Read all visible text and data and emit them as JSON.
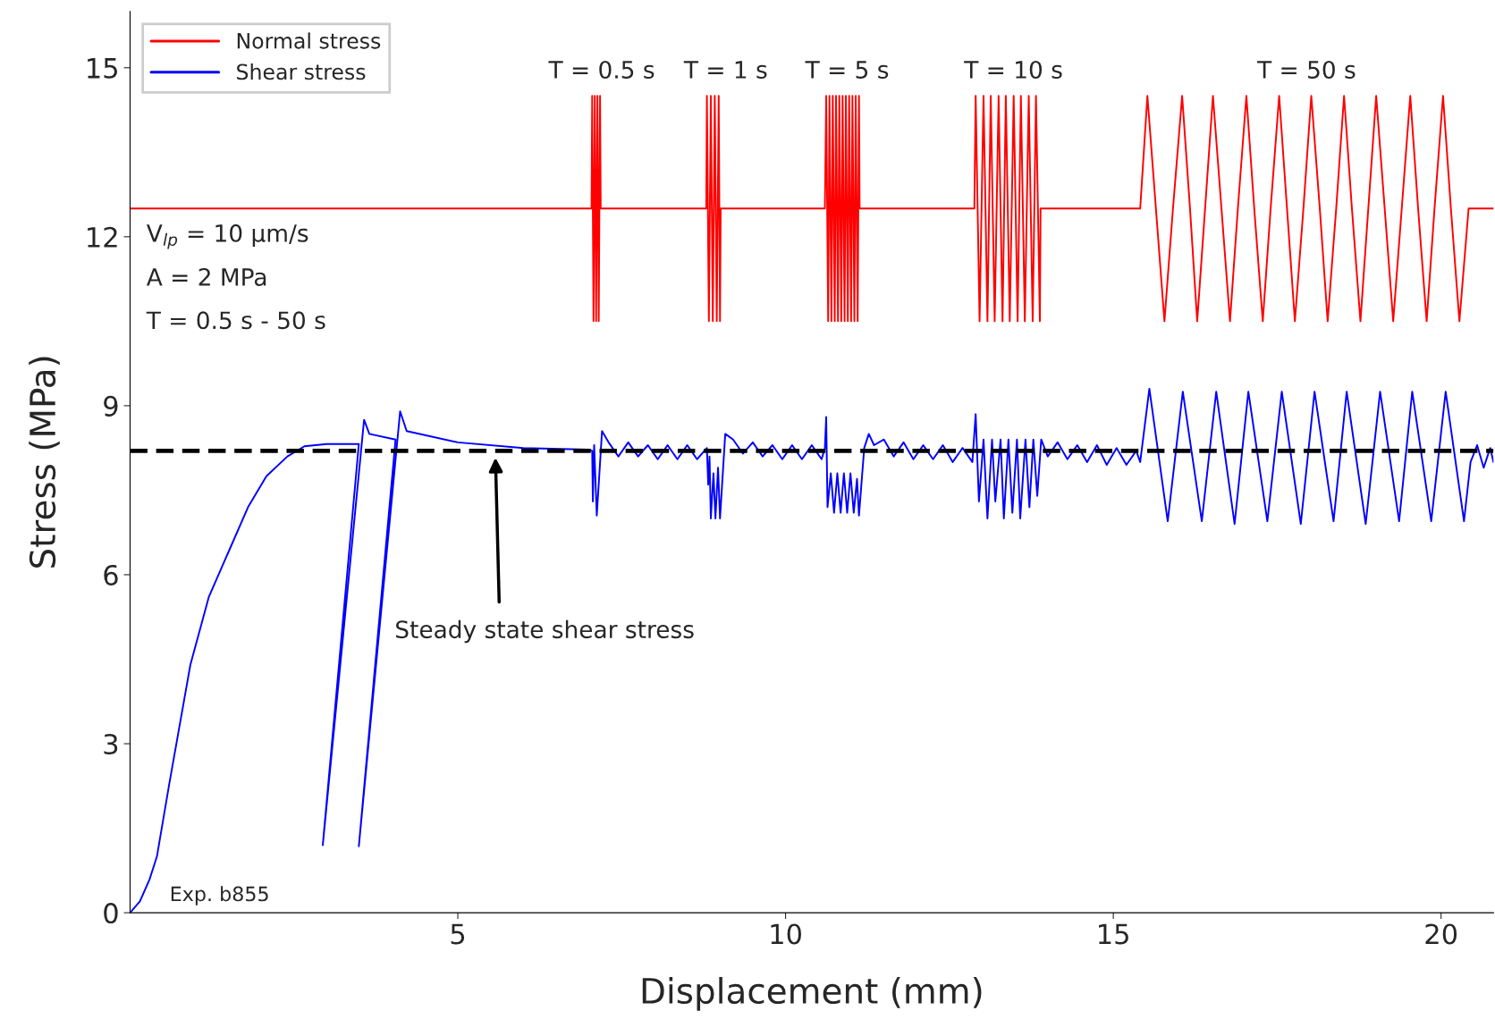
{
  "chart_data": {
    "type": "line",
    "xlabel": "Displacement (mm)",
    "ylabel": "Stress (MPa)",
    "xlim": [
      0,
      20.8
    ],
    "ylim": [
      0,
      16
    ],
    "xticks": [
      5,
      10,
      15,
      20
    ],
    "yticks": [
      0,
      3,
      6,
      9,
      12,
      15
    ],
    "grid": false,
    "legend": "top left",
    "marker": "none",
    "line_style": "solid",
    "series": [
      {
        "name": "Normal stress",
        "color": "#ff0000",
        "x": [
          0,
          7.04,
          7.05,
          7.07,
          7.09,
          7.11,
          7.13,
          7.15,
          7.17,
          7.18,
          8.79,
          8.8,
          8.83,
          8.86,
          8.89,
          8.92,
          8.95,
          8.98,
          9.0,
          9.01,
          10.6,
          10.62,
          10.65,
          10.67,
          10.7,
          10.72,
          10.75,
          10.77,
          10.8,
          10.82,
          10.85,
          10.87,
          10.9,
          10.92,
          10.95,
          10.97,
          11.0,
          11.02,
          11.05,
          11.07,
          11.1,
          11.12,
          11.13,
          12.88,
          12.9,
          12.96,
          13.02,
          13.08,
          13.13,
          13.19,
          13.25,
          13.31,
          13.36,
          13.42,
          13.48,
          13.54,
          13.59,
          13.65,
          13.71,
          13.77,
          13.82,
          13.88,
          13.89,
          15.41,
          15.52,
          15.65,
          15.78,
          15.91,
          16.05,
          16.17,
          16.28,
          16.4,
          16.52,
          16.65,
          16.78,
          16.9,
          17.03,
          17.15,
          17.28,
          17.4,
          17.53,
          17.65,
          17.77,
          17.9,
          18.02,
          18.15,
          18.27,
          18.4,
          18.52,
          18.64,
          18.77,
          18.89,
          19.01,
          19.14,
          19.27,
          19.4,
          19.53,
          19.65,
          19.78,
          19.9,
          20.03,
          20.15,
          20.28,
          20.42,
          20.8
        ],
        "values": [
          12.5,
          12.5,
          14.5,
          10.5,
          14.5,
          10.5,
          14.5,
          10.5,
          14.5,
          12.5,
          12.5,
          14.5,
          10.5,
          14.5,
          10.5,
          14.5,
          10.5,
          14.5,
          10.5,
          12.5,
          12.5,
          14.5,
          10.5,
          14.5,
          10.5,
          14.5,
          10.5,
          14.5,
          10.5,
          14.5,
          10.5,
          14.5,
          10.5,
          14.5,
          10.5,
          14.5,
          10.5,
          14.5,
          10.5,
          14.5,
          10.5,
          14.5,
          12.5,
          12.5,
          14.5,
          10.5,
          14.5,
          10.5,
          14.5,
          10.5,
          14.5,
          10.5,
          14.5,
          10.5,
          14.5,
          10.5,
          14.5,
          10.5,
          14.5,
          10.5,
          14.5,
          10.5,
          12.5,
          12.5,
          14.5,
          12.5,
          10.5,
          12.5,
          14.5,
          12.5,
          10.5,
          12.5,
          14.5,
          12.5,
          10.5,
          12.5,
          14.5,
          12.5,
          10.5,
          12.5,
          14.5,
          12.5,
          10.5,
          12.5,
          14.5,
          12.5,
          10.5,
          12.5,
          14.5,
          12.5,
          10.5,
          12.5,
          14.5,
          12.5,
          10.5,
          12.5,
          14.5,
          12.5,
          10.5,
          12.5,
          14.5,
          12.5,
          10.5,
          12.5,
          12.5
        ]
      },
      {
        "name": "Shear stress",
        "color": "#0000ff",
        "x": [
          0,
          0.15,
          0.3,
          0.41,
          0.6,
          0.92,
          1.2,
          1.5,
          1.8,
          2.08,
          2.4,
          2.66,
          3.0,
          3.49,
          2.94,
          3.57,
          3.65,
          4.05,
          3.49,
          4.12,
          4.22,
          5.0,
          6.0,
          7.0,
          7.05,
          7.06,
          7.08,
          7.12,
          7.2,
          7.3,
          7.45,
          7.6,
          7.75,
          7.9,
          8.05,
          8.2,
          8.35,
          8.5,
          8.65,
          8.8,
          8.82,
          8.84,
          8.86,
          8.9,
          8.93,
          8.97,
          9.0,
          9.08,
          9.2,
          9.35,
          9.5,
          9.65,
          9.8,
          9.95,
          10.1,
          10.25,
          10.4,
          10.55,
          10.6,
          10.62,
          10.64,
          10.69,
          10.74,
          10.79,
          10.84,
          10.89,
          10.94,
          10.99,
          11.04,
          11.09,
          11.12,
          11.2,
          11.27,
          11.35,
          11.5,
          11.65,
          11.8,
          11.95,
          12.1,
          12.25,
          12.4,
          12.55,
          12.7,
          12.85,
          12.9,
          12.95,
          13.02,
          13.08,
          13.15,
          13.2,
          13.28,
          13.33,
          13.4,
          13.46,
          13.53,
          13.58,
          13.66,
          13.72,
          13.78,
          13.84,
          13.9,
          14.0,
          14.15,
          14.3,
          14.45,
          14.6,
          14.75,
          14.9,
          15.05,
          15.2,
          15.35,
          15.41,
          15.55,
          15.83,
          16.06,
          16.35,
          16.57,
          16.85,
          17.06,
          17.35,
          17.57,
          17.86,
          18.07,
          18.36,
          18.56,
          18.85,
          19.07,
          19.36,
          19.56,
          19.85,
          20.07,
          20.35,
          20.45,
          20.55,
          20.65,
          20.75,
          20.8
        ],
        "values": [
          0,
          0.2,
          0.6,
          1.0,
          2.3,
          4.4,
          5.6,
          6.4,
          7.2,
          7.75,
          8.1,
          8.28,
          8.32,
          8.32,
          1.2,
          8.75,
          8.5,
          8.4,
          1.18,
          8.9,
          8.55,
          8.35,
          8.25,
          8.22,
          8.2,
          7.3,
          8.3,
          7.05,
          8.55,
          8.35,
          8.1,
          8.35,
          8.1,
          8.3,
          8.05,
          8.3,
          8.05,
          8.3,
          8.05,
          8.25,
          7.6,
          8.1,
          7.0,
          7.8,
          7.0,
          7.9,
          7.0,
          8.5,
          8.4,
          8.15,
          8.35,
          8.1,
          8.3,
          8.05,
          8.3,
          8.05,
          8.3,
          8.05,
          8.25,
          8.8,
          7.2,
          7.8,
          7.1,
          7.8,
          7.1,
          7.8,
          7.1,
          7.8,
          7.1,
          7.7,
          7.05,
          8.25,
          8.5,
          8.3,
          8.4,
          8.1,
          8.35,
          8.05,
          8.3,
          8.05,
          8.3,
          8.0,
          8.25,
          8.0,
          8.85,
          7.3,
          8.4,
          7.0,
          8.4,
          7.3,
          8.4,
          7.0,
          8.4,
          7.1,
          8.4,
          7.0,
          8.4,
          7.2,
          8.4,
          7.4,
          8.4,
          8.1,
          8.35,
          8.05,
          8.3,
          8.0,
          8.3,
          7.95,
          8.25,
          7.95,
          8.2,
          8.0,
          9.3,
          6.95,
          9.25,
          6.95,
          9.25,
          6.9,
          9.25,
          6.95,
          9.25,
          6.9,
          9.25,
          6.95,
          9.25,
          6.9,
          9.25,
          6.95,
          9.25,
          6.95,
          9.25,
          6.95,
          8.0,
          8.3,
          7.9,
          8.25,
          8.0
        ]
      }
    ],
    "ref_lines": [
      {
        "axis": "y",
        "value": 8.2,
        "color": "#000000",
        "line_style": "dashed"
      }
    ],
    "annotations": [
      "T = 0.5 s",
      "T = 1 s",
      "T = 5 s",
      "T = 10 s",
      "T = 50 s",
      "Steady state shear stress",
      "V$_{lp}$ = 10 µm/s",
      "A = 2 MPa",
      "T = 0.5 s - 50 s",
      "Exp. b855"
    ]
  }
}
